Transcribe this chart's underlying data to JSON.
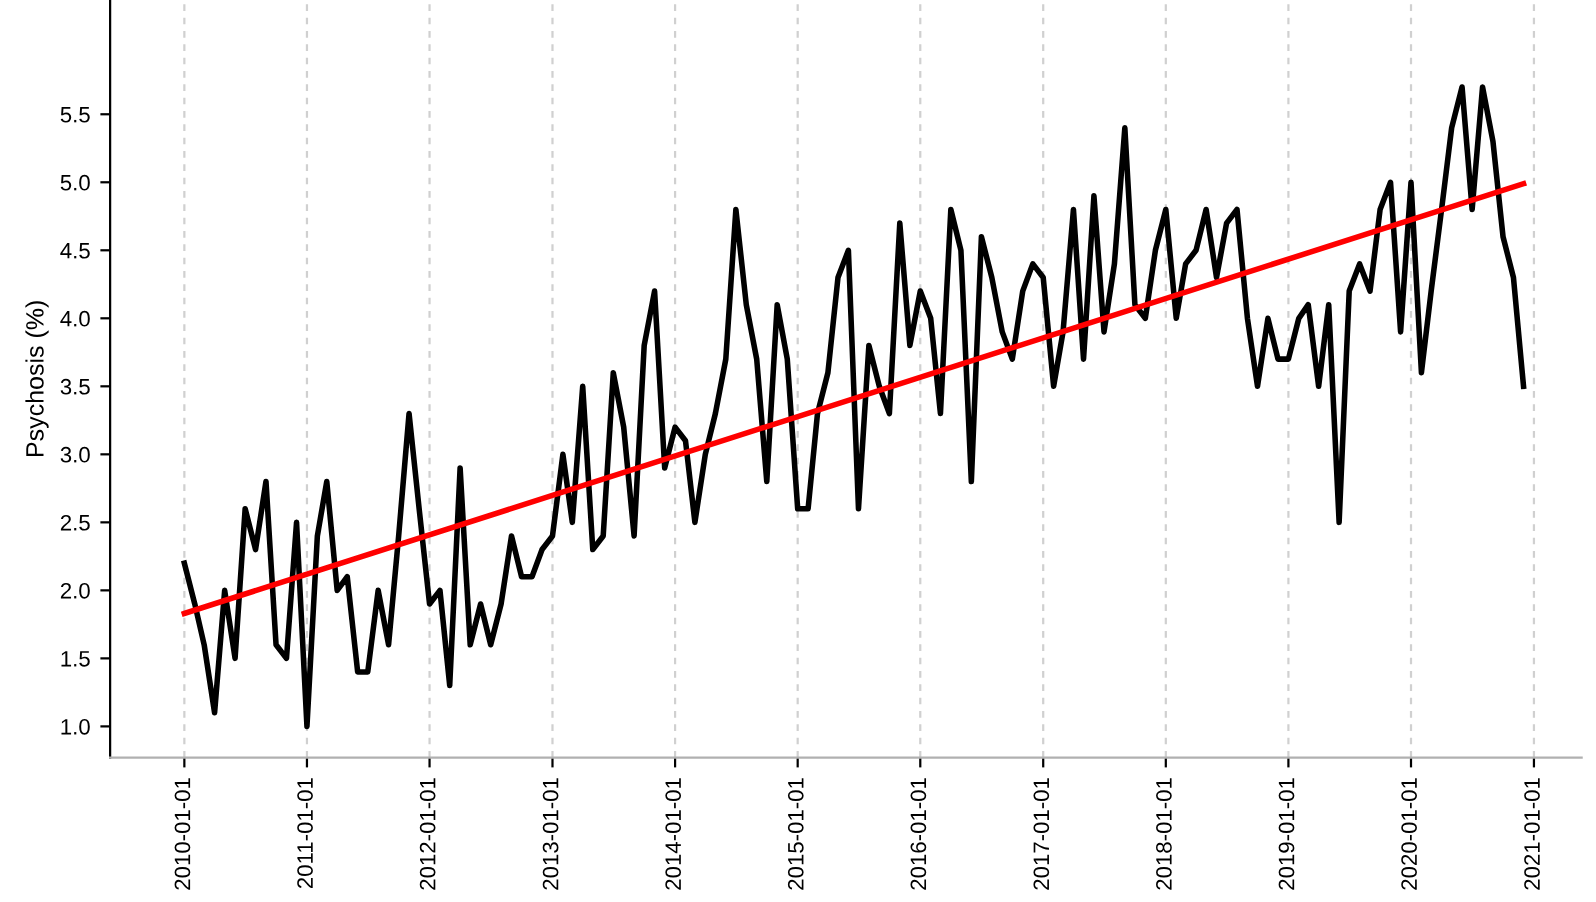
{
  "chart_data": {
    "type": "line",
    "ylabel": "Psychosis (%)",
    "x": [
      "2010-01",
      "2010-02",
      "2010-03",
      "2010-04",
      "2010-05",
      "2010-06",
      "2010-07",
      "2010-08",
      "2010-09",
      "2010-10",
      "2010-11",
      "2010-12",
      "2011-01",
      "2011-02",
      "2011-03",
      "2011-04",
      "2011-05",
      "2011-06",
      "2011-07",
      "2011-08",
      "2011-09",
      "2011-10",
      "2011-11",
      "2011-12",
      "2012-01",
      "2012-02",
      "2012-03",
      "2012-04",
      "2012-05",
      "2012-06",
      "2012-07",
      "2012-08",
      "2012-09",
      "2012-10",
      "2012-11",
      "2012-12",
      "2013-01",
      "2013-02",
      "2013-03",
      "2013-04",
      "2013-05",
      "2013-06",
      "2013-07",
      "2013-08",
      "2013-09",
      "2013-10",
      "2013-11",
      "2013-12",
      "2014-01",
      "2014-02",
      "2014-03",
      "2014-04",
      "2014-05",
      "2014-06",
      "2014-07",
      "2014-08",
      "2014-09",
      "2014-10",
      "2014-11",
      "2014-12",
      "2015-01",
      "2015-02",
      "2015-03",
      "2015-04",
      "2015-05",
      "2015-06",
      "2015-07",
      "2015-08",
      "2015-09",
      "2015-10",
      "2015-11",
      "2015-12",
      "2016-01",
      "2016-02",
      "2016-03",
      "2016-04",
      "2016-05",
      "2016-06",
      "2016-07",
      "2016-08",
      "2016-09",
      "2016-10",
      "2016-11",
      "2016-12",
      "2017-01",
      "2017-02",
      "2017-03",
      "2017-04",
      "2017-05",
      "2017-06",
      "2017-07",
      "2017-08",
      "2017-09",
      "2017-10",
      "2017-11",
      "2017-12",
      "2018-01",
      "2018-02",
      "2018-03",
      "2018-04",
      "2018-05",
      "2018-06",
      "2018-07",
      "2018-08",
      "2018-09",
      "2018-10",
      "2018-11",
      "2018-12",
      "2019-01",
      "2019-02",
      "2019-03",
      "2019-04",
      "2019-05",
      "2019-06",
      "2019-07",
      "2019-08",
      "2019-09",
      "2019-10",
      "2019-11",
      "2019-12",
      "2020-01",
      "2020-02",
      "2020-03",
      "2020-04",
      "2020-05",
      "2020-06",
      "2020-07",
      "2020-08",
      "2020-09",
      "2020-10",
      "2020-11",
      "2020-12"
    ],
    "series": [
      {
        "color": "#000000",
        "values": [
          2.2,
          1.9,
          1.6,
          1.1,
          2.0,
          1.5,
          2.6,
          2.3,
          2.8,
          1.6,
          1.5,
          2.5,
          1.0,
          2.4,
          2.8,
          2.0,
          2.1,
          1.4,
          1.4,
          2.0,
          1.6,
          2.4,
          3.3,
          2.6,
          1.9,
          2.0,
          1.3,
          2.9,
          1.6,
          1.9,
          1.6,
          1.9,
          2.4,
          2.1,
          2.1,
          2.3,
          2.4,
          3.0,
          2.5,
          3.5,
          2.3,
          2.4,
          3.6,
          3.2,
          2.4,
          3.8,
          4.2,
          2.9,
          3.2,
          3.1,
          2.5,
          3.0,
          3.3,
          3.7,
          4.8,
          4.1,
          3.7,
          2.8,
          4.1,
          3.7,
          2.6,
          2.6,
          3.3,
          3.6,
          4.3,
          4.5,
          2.6,
          3.8,
          3.5,
          3.3,
          4.7,
          3.8,
          4.2,
          4.0,
          3.3,
          4.8,
          4.5,
          2.8,
          4.6,
          4.3,
          3.9,
          3.7,
          4.2,
          4.4,
          4.3,
          3.5,
          3.9,
          4.8,
          3.7,
          4.9,
          3.9,
          4.4,
          5.4,
          4.1,
          4.0,
          4.5,
          4.8,
          4.0,
          4.4,
          4.5,
          4.8,
          4.3,
          4.7,
          4.8,
          4.0,
          3.5,
          4.0,
          3.7,
          3.7,
          4.0,
          4.1,
          3.5,
          4.1,
          2.5,
          4.2,
          4.4,
          4.2,
          4.8,
          5.0,
          3.9,
          5.0,
          3.6,
          4.2,
          4.8,
          5.4,
          5.7,
          4.8,
          5.7,
          5.3,
          4.6,
          4.3,
          3.5
        ]
      },
      {
        "color": "#ff0000",
        "x": [
          "2010-01",
          "2020-12"
        ],
        "values": [
          1.83,
          4.99
        ]
      }
    ],
    "xlim": [
      "2009-05-25",
      "2021-05-23"
    ],
    "xticks": [
      "2010-01-01",
      "2011-01-01",
      "2012-01-01",
      "2013-01-01",
      "2014-01-01",
      "2015-01-01",
      "2016-01-01",
      "2017-01-01",
      "2018-01-01",
      "2019-01-01",
      "2020-01-01",
      "2021-01-01"
    ],
    "ylim": [
      0.77,
      6.34
    ],
    "yticks": [
      {
        "value": 1.0,
        "label": "1.0"
      },
      {
        "value": 1.5,
        "label": "1.5"
      },
      {
        "value": 2.0,
        "label": "2.0"
      },
      {
        "value": 2.5,
        "label": "2.5"
      },
      {
        "value": 3.0,
        "label": "3.0"
      },
      {
        "value": 3.5,
        "label": "3.5"
      },
      {
        "value": 4.0,
        "label": "4.0"
      },
      {
        "value": 4.5,
        "label": "4.5"
      },
      {
        "value": 5.0,
        "label": "5.0"
      },
      {
        "value": 5.5,
        "label": "5.5"
      }
    ],
    "grid": "x",
    "marker": "none",
    "line_style": "solid"
  }
}
